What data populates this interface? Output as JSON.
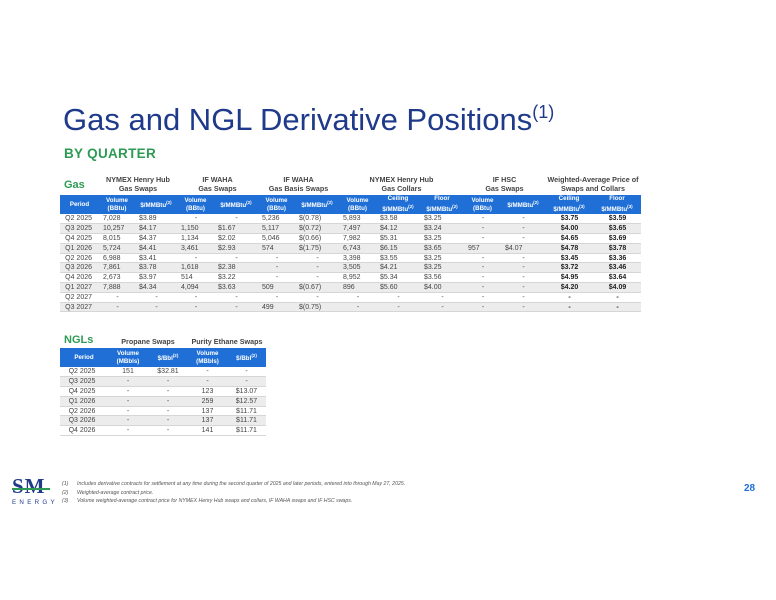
{
  "title": "Gas and NGL Derivative Positions",
  "title_sup": "(1)",
  "subtitle": "BY QUARTER",
  "gas": {
    "label": "Gas",
    "groups": [
      "NYMEX Henry Hub\nGas Swaps",
      "IF WAHA\nGas Swaps",
      "IF WAHA\nGas Basis Swaps",
      "NYMEX Henry Hub\nGas Collars",
      "IF HSC\nGas Swaps",
      "Weighted-Average Price of\nSwaps and Collars"
    ],
    "headers": [
      "Period",
      "Volume\n(BBtu)",
      "$/MMBtu(2)",
      "Volume\n(BBtu)",
      "$/MMBtu(2)",
      "Volume\n(BBtu)",
      "$/MMBtu(2)",
      "Volume\n(BBtu)",
      "Ceiling\n$/MMBtu(2)",
      "Floor\n$/MMBtu(2)",
      "Volume\n(BBtu)",
      "$/MMBtu(2)",
      "Ceiling\n$/MMBtu(3)",
      "Floor\n$/MMBtu(3)"
    ],
    "rows": [
      [
        "Q2 2025",
        "7,028",
        "$3.89",
        "-",
        "-",
        "5,236",
        "$(0.78)",
        "5,893",
        "$3.58",
        "$3.25",
        "-",
        "-",
        "$3.75",
        "$3.59"
      ],
      [
        "Q3 2025",
        "10,257",
        "$4.17",
        "1,150",
        "$1.67",
        "5,117",
        "$(0.72)",
        "7,497",
        "$4.12",
        "$3.24",
        "-",
        "-",
        "$4.00",
        "$3.65"
      ],
      [
        "Q4 2025",
        "8,015",
        "$4.37",
        "1,134",
        "$2.02",
        "5,046",
        "$(0.66)",
        "7,982",
        "$5.31",
        "$3.25",
        "-",
        "-",
        "$4.65",
        "$3.69"
      ],
      [
        "Q1 2026",
        "5,724",
        "$4.41",
        "3,461",
        "$2.93",
        "574",
        "$(1.75)",
        "6,743",
        "$6.15",
        "$3.65",
        "957",
        "$4.07",
        "$4.78",
        "$3.78"
      ],
      [
        "Q2 2026",
        "6,988",
        "$3.41",
        "-",
        "-",
        "-",
        "-",
        "3,398",
        "$3.55",
        "$3.25",
        "-",
        "-",
        "$3.45",
        "$3.36"
      ],
      [
        "Q3 2026",
        "7,861",
        "$3.78",
        "1,618",
        "$2.38",
        "-",
        "-",
        "3,505",
        "$4.21",
        "$3.25",
        "-",
        "-",
        "$3.72",
        "$3.46"
      ],
      [
        "Q4 2026",
        "2,673",
        "$3.97",
        "514",
        "$3.22",
        "-",
        "-",
        "8,952",
        "$5.34",
        "$3.56",
        "-",
        "-",
        "$4.95",
        "$3.64"
      ],
      [
        "Q1 2027",
        "7,888",
        "$4.34",
        "4,094",
        "$3.63",
        "509",
        "$(0.67)",
        "896",
        "$5.60",
        "$4.00",
        "-",
        "-",
        "$4.20",
        "$4.09"
      ],
      [
        "Q2 2027",
        "-",
        "-",
        "-",
        "-",
        "-",
        "-",
        "-",
        "-",
        "-",
        "-",
        "-",
        "-",
        "-"
      ],
      [
        "Q3 2027",
        "-",
        "-",
        "-",
        "-",
        "499",
        "$(0.75)",
        "-",
        "-",
        "-",
        "-",
        "-",
        "-",
        "-"
      ]
    ]
  },
  "ngl": {
    "label": "NGLs",
    "groups": [
      "Propane Swaps",
      "Purity Ethane Swaps"
    ],
    "headers": [
      "Period",
      "Volume\n(MBbls)",
      "$/Bbl(2)",
      "Volume\n(MBbls)",
      "$/Bbl(2)"
    ],
    "rows": [
      [
        "Q2 2025",
        "151",
        "$32.81",
        "-",
        "-"
      ],
      [
        "Q3 2025",
        "-",
        "-",
        "-",
        "-"
      ],
      [
        "Q4 2025",
        "-",
        "-",
        "123",
        "$13.07"
      ],
      [
        "Q1 2026",
        "-",
        "-",
        "259",
        "$12.57"
      ],
      [
        "Q2 2026",
        "-",
        "-",
        "137",
        "$11.71"
      ],
      [
        "Q3 2026",
        "-",
        "-",
        "137",
        "$11.71"
      ],
      [
        "Q4 2026",
        "-",
        "-",
        "141",
        "$11.71"
      ]
    ]
  },
  "footnotes": [
    {
      "num": "(1)",
      "text": "Includes derivative contracts for settlement at any time during the second quarter of 2025 and later periods, entered into through May 27, 2025."
    },
    {
      "num": "(2)",
      "text": "Weighted-average contract price."
    },
    {
      "num": "(3)",
      "text": "Volume weighted-average contract price for NYMEX Henry Hub swaps and collars, IF WAHA swaps and IF HSC swaps."
    }
  ],
  "logo": {
    "mark": "SM",
    "word": "ENERGY"
  },
  "page_number": "28",
  "colors": {
    "title": "#1f3a8a",
    "accent": "#2e9b55",
    "header": "#1f6fd6"
  }
}
